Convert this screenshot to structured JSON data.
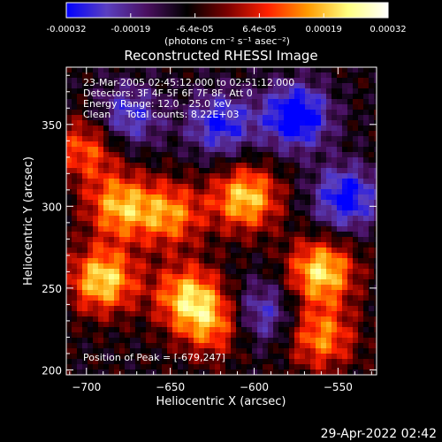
{
  "colorbar": {
    "ticks": [
      "-0.00032",
      "-0.00019",
      "-6.4e-05",
      "6.4e-05",
      "0.00019",
      "0.00032"
    ],
    "unit_label": "(photons cm⁻² s⁻¹ asec⁻²)"
  },
  "chart_data": {
    "type": "heatmap",
    "title": "Reconstructed RHESSI Image",
    "xlabel": "Heliocentric X (arcsec)",
    "ylabel": "Heliocentric Y (arcsec)",
    "xlim": [
      -712,
      -527
    ],
    "ylim": [
      197,
      385
    ],
    "x_ticks": [
      -700,
      -650,
      -600,
      -550
    ],
    "y_ticks": [
      200,
      250,
      300,
      350
    ],
    "x_tick_labels": [
      "−700",
      "−650",
      "−600",
      "−550"
    ],
    "y_tick_labels": [
      "200",
      "250",
      "300",
      "350"
    ],
    "colorscale": [
      "#0000ff",
      "#5a3fc0",
      "#4a1060",
      "#000000",
      "#7a0000",
      "#ff2000",
      "#ff9a00",
      "#ffff80",
      "#ffffff"
    ],
    "annotations": [
      "23-Mar-2005 02:45:12.000 to 02:51:12.000",
      "Detectors: 3F 4F 5F 6F 7F 8F, Att 0",
      "Energy Range: 12.0 - 25.0 keV",
      "Clean     Total counts: 8.22E+03"
    ],
    "peak_label": "Position of Peak = [-679,247]",
    "peak_position": [
      -679,
      247
    ],
    "bright_regions": [
      {
        "x": -690,
        "y": 255,
        "level": 0.95
      },
      {
        "x": -680,
        "y": 300,
        "level": 0.8
      },
      {
        "x": -605,
        "y": 305,
        "level": 0.9
      },
      {
        "x": -560,
        "y": 260,
        "level": 0.95
      },
      {
        "x": -640,
        "y": 245,
        "level": 0.8
      },
      {
        "x": -650,
        "y": 295,
        "level": 0.7
      },
      {
        "x": -560,
        "y": 220,
        "level": 0.7
      },
      {
        "x": -700,
        "y": 335,
        "level": 0.6
      },
      {
        "x": -625,
        "y": 228,
        "level": 0.65
      }
    ],
    "dim_regions": [
      {
        "x": -575,
        "y": 355,
        "level": -0.95
      },
      {
        "x": -545,
        "y": 305,
        "level": -0.8
      },
      {
        "x": -620,
        "y": 350,
        "level": -0.7
      },
      {
        "x": -675,
        "y": 355,
        "level": -0.6
      },
      {
        "x": -595,
        "y": 235,
        "level": -0.55
      }
    ]
  },
  "footer": {
    "timestamp": "29-Apr-2022 02:42"
  }
}
